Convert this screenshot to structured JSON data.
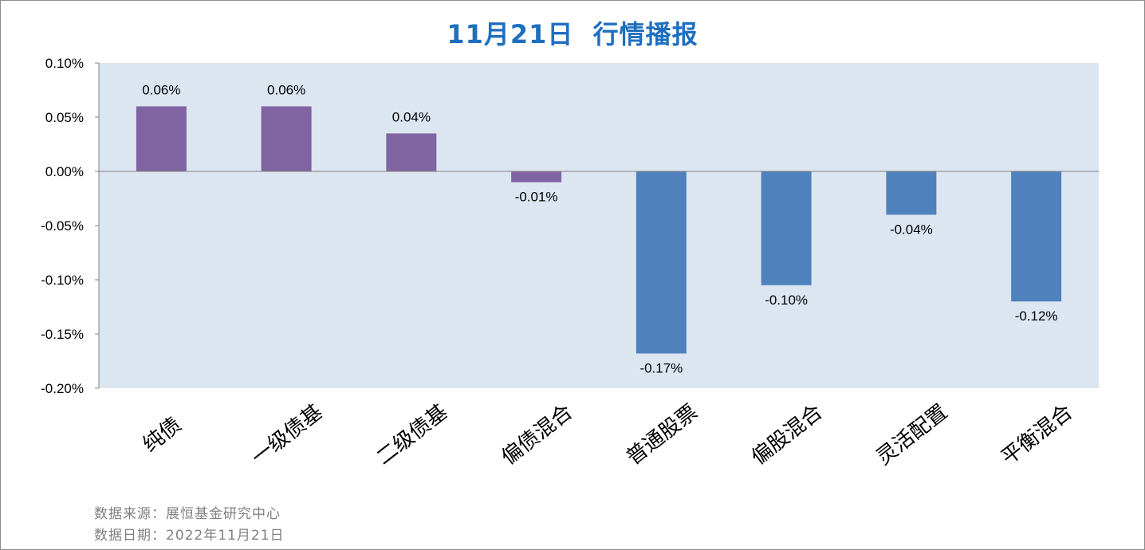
{
  "title": "11月21日  行情播报",
  "footer": {
    "source": "数据来源：展恒基金研究中心",
    "date": "数据日期：2022年11月21日"
  },
  "colors": {
    "plot_background": "#dce6f1",
    "bond_series": "#8064a2",
    "equity_series": "#4f81bd",
    "title": "#1f6fbf",
    "axis": "#808080"
  },
  "chart_data": {
    "type": "bar",
    "title": "11月21日  行情播报",
    "xlabel": "",
    "ylabel": "",
    "categories": [
      "纯债",
      "一级债基",
      "二级债基",
      "偏债混合",
      "普通股票",
      "偏股混合",
      "灵活配置",
      "平衡混合"
    ],
    "values": [
      0.06,
      0.06,
      0.035,
      -0.01,
      -0.168,
      -0.105,
      -0.04,
      -0.12
    ],
    "data_labels": [
      "0.06%",
      "0.06%",
      "0.04%",
      "-0.01%",
      "-0.17%",
      "-0.10%",
      "-0.04%",
      "-0.12%"
    ],
    "bar_colors": [
      "#8064a2",
      "#8064a2",
      "#8064a2",
      "#8064a2",
      "#4f81bd",
      "#4f81bd",
      "#4f81bd",
      "#4f81bd"
    ],
    "ylim": [
      -0.2,
      0.1
    ],
    "yticks": [
      0.1,
      0.05,
      0.0,
      -0.05,
      -0.1,
      -0.15,
      -0.2
    ],
    "ytick_labels": [
      "0.10%",
      "0.05%",
      "0.00%",
      "-0.05%",
      "-0.10%",
      "-0.15%",
      "-0.20%"
    ],
    "unit": "%",
    "grid": false,
    "legend": "none"
  }
}
